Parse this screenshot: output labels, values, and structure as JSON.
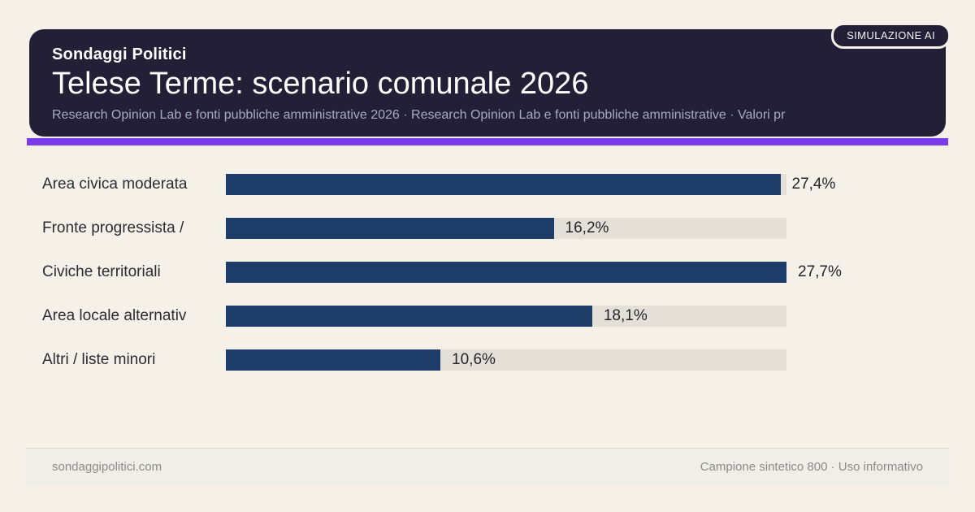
{
  "header": {
    "badge": "SIMULAZIONE AI",
    "kicker": "Sondaggi Politici",
    "title": "Telese Terme: scenario comunale 2026",
    "subtitle": "Research Opinion Lab e fonti pubbliche amministrative 2026 · Research Opinion Lab e fonti pubbliche amministrative · Valori pr"
  },
  "chart_data": {
    "type": "bar",
    "orientation": "horizontal",
    "title": "Telese Terme: scenario comunale 2026",
    "categories": [
      "Area civica moderata",
      "Fronte progressista /",
      "Civiche territoriali",
      "Area locale alternativ",
      "Altri / liste minori"
    ],
    "values": [
      27.4,
      16.2,
      27.7,
      18.1,
      10.6
    ],
    "value_labels": [
      "27,4%",
      "16,2%",
      "27,7%",
      "18,1%",
      "10,6%"
    ],
    "unit": "%",
    "max_value": 27.7,
    "grid": false,
    "legend": false,
    "bar_color": "#1e3c68",
    "track_color": "#e5e0d7"
  },
  "footer": {
    "left": "sondaggipolitici.com",
    "right": "Campione sintetico 800 · Uso informativo"
  },
  "colors": {
    "page_bg": "#f5f1e9",
    "header_bg": "#221f37",
    "accent": "#7c3aed",
    "bar": "#1e3c68",
    "track": "#e5e0d7"
  }
}
